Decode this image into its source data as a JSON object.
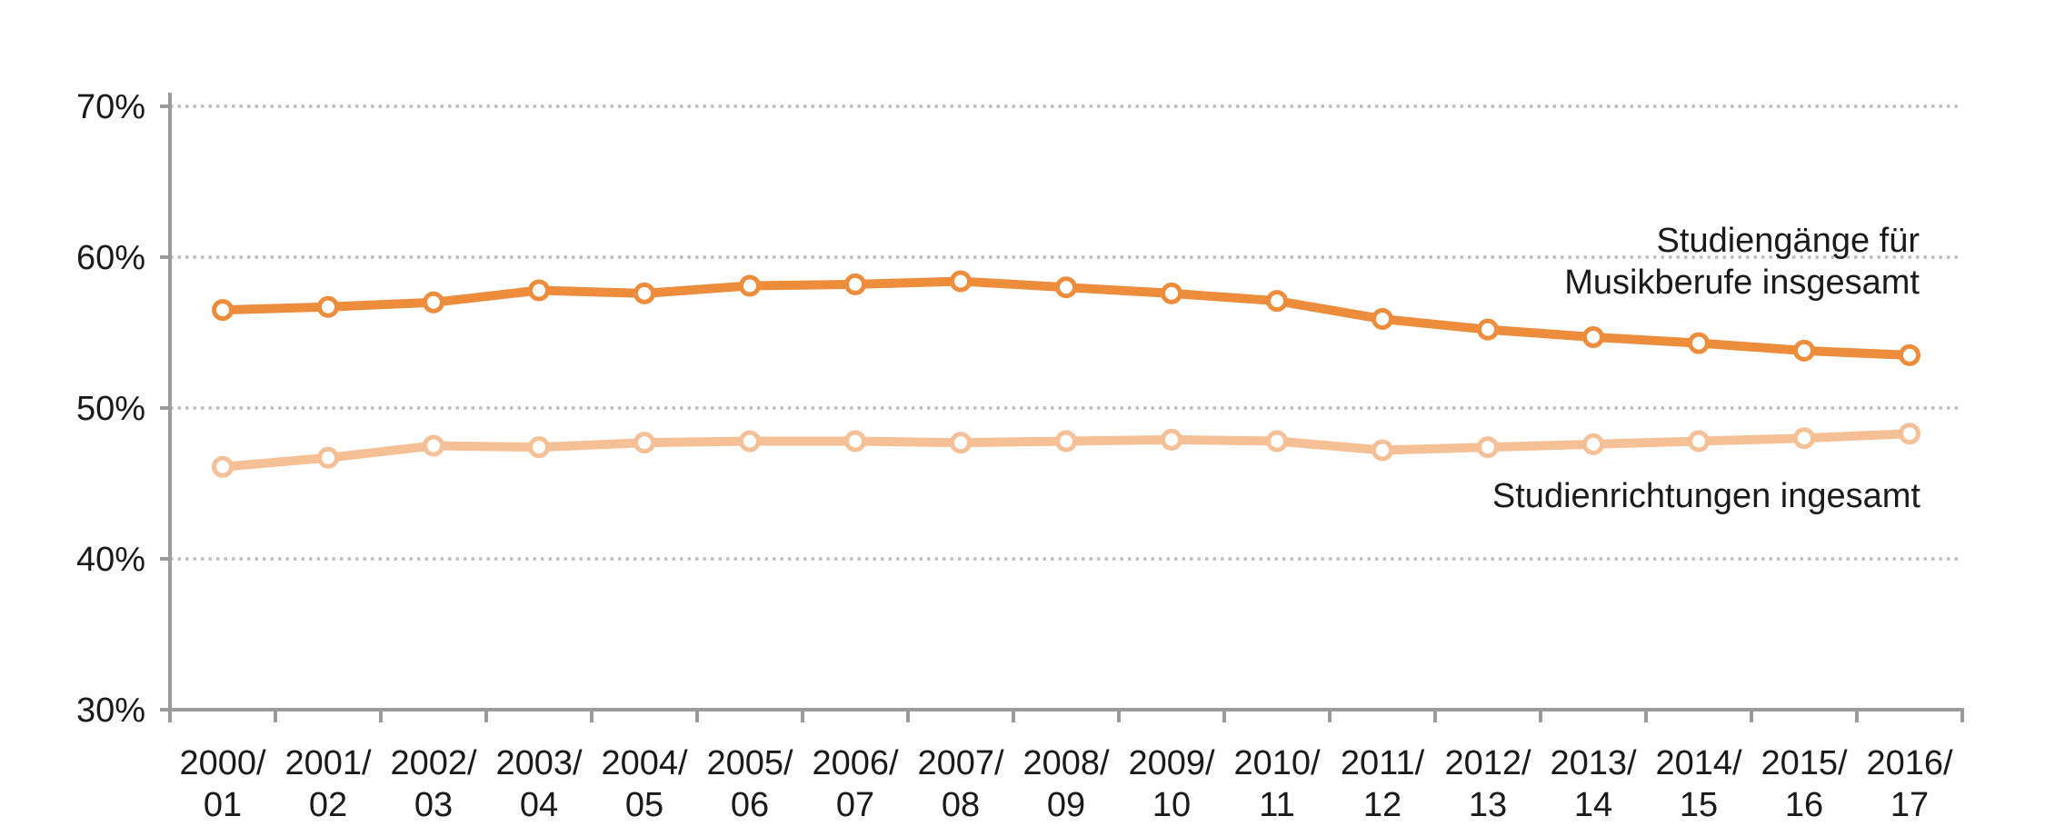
{
  "chart_data": {
    "type": "line",
    "title": "",
    "xlabel": "",
    "ylabel": "",
    "categories": [
      "2000/01",
      "2001/02",
      "2002/03",
      "2003/04",
      "2004/05",
      "2005/06",
      "2006/07",
      "2007/08",
      "2008/09",
      "2009/10",
      "2010/11",
      "2011/12",
      "2012/13",
      "2013/14",
      "2014/15",
      "2015/16",
      "2016/17"
    ],
    "series": [
      {
        "name": "Studiengänge für Musikberufe insgesamt",
        "label_lines": [
          "Studiengänge für",
          "Musikberufe insgesamt"
        ],
        "color": "#ED8C3B",
        "marker": "circle-white-fill",
        "values": [
          56.5,
          56.7,
          57.0,
          57.8,
          57.6,
          58.1,
          58.2,
          58.4,
          58.0,
          57.6,
          57.1,
          55.9,
          55.2,
          54.7,
          54.3,
          53.8,
          53.5
        ]
      },
      {
        "name": "Studienrichtungen ingesamt",
        "label_lines": [
          "Studienrichtungen ingesamt"
        ],
        "color": "#F6C096",
        "marker": "circle-white-fill",
        "values": [
          46.1,
          46.7,
          47.5,
          47.4,
          47.7,
          47.8,
          47.8,
          47.7,
          47.8,
          47.9,
          47.8,
          47.2,
          47.4,
          47.6,
          47.8,
          48.0,
          48.3
        ]
      }
    ],
    "ylim": [
      30,
      70
    ],
    "yticks": [
      {
        "value": 70,
        "label": "70%"
      },
      {
        "value": 60,
        "label": "60%"
      },
      {
        "value": 50,
        "label": "50%"
      },
      {
        "value": 40,
        "label": "40%"
      },
      {
        "value": 30,
        "label": "30%"
      }
    ],
    "grid": {
      "horizontal": "dotted",
      "vertical": "none"
    },
    "legend": "direct-labels-at-right",
    "axis_color": "#9B9B9B",
    "grid_color": "#BDBDBD",
    "text_color": "#1A1A1A",
    "background": "#FFFFFF"
  }
}
